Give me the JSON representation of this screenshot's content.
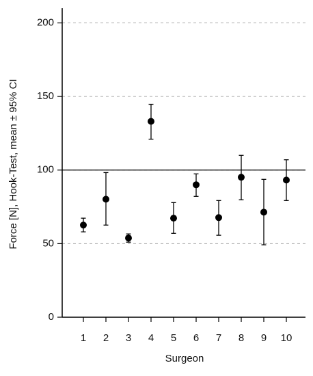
{
  "chart_data": {
    "type": "errorbar",
    "x_label": "Surgeon",
    "y_label": "Force [N], Hook-Test, mean ± 95% CI",
    "categories": [
      "1",
      "2",
      "3",
      "4",
      "5",
      "6",
      "7",
      "8",
      "9",
      "10"
    ],
    "values": [
      62.6,
      80.2,
      53.8,
      133.1,
      67.3,
      90,
      67.7,
      95.1,
      71.4,
      93.2
    ],
    "ci_low": [
      58,
      62.6,
      51,
      121,
      57,
      82.1,
      55.7,
      79.8,
      49.2,
      79.3
    ],
    "ci_high": [
      67.3,
      98.3,
      56.6,
      144.7,
      77.9,
      97.4,
      79.3,
      110,
      93.7,
      107
    ],
    "color": "#000000",
    "ylim": [
      0,
      210
    ],
    "yticks": [
      0,
      50,
      100,
      150,
      200
    ],
    "grid": true,
    "reference_line": 100
  }
}
